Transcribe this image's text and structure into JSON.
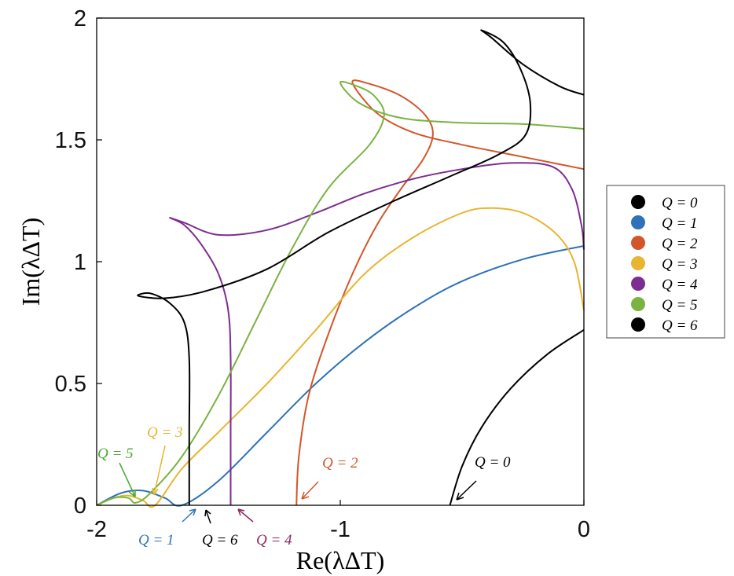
{
  "chart_data": {
    "type": "line",
    "title": "",
    "xlabel": "Re(λΔT)",
    "ylabel": "Im(λΔT)",
    "xlim": [
      -2,
      0
    ],
    "ylim": [
      0,
      2
    ],
    "x_ticks": [
      "-2",
      "-1",
      "0"
    ],
    "y_ticks": [
      "0",
      "0.5",
      "1",
      "1.5",
      "2"
    ],
    "grid": false,
    "legend_position": "right",
    "series": [
      {
        "name": "Q = 0",
        "color": "#000000",
        "points": [
          [
            -0.55,
            0
          ],
          [
            -0.5,
            0.16
          ],
          [
            -0.42,
            0.32
          ],
          [
            -0.3,
            0.48
          ],
          [
            -0.15,
            0.62
          ],
          [
            0,
            0.72
          ]
        ]
      },
      {
        "name": "Q = 1",
        "color": "#2f72b8",
        "points": [
          [
            -2.0,
            0
          ],
          [
            -1.9,
            0.05
          ],
          [
            -1.81,
            0.06
          ],
          [
            -1.72,
            0.03
          ],
          [
            -1.65,
            0
          ],
          [
            -1.5,
            0.1
          ],
          [
            -1.3,
            0.3
          ],
          [
            -1.1,
            0.5
          ],
          [
            -0.9,
            0.67
          ],
          [
            -0.7,
            0.81
          ],
          [
            -0.5,
            0.92
          ],
          [
            -0.25,
            1.01
          ],
          [
            0,
            1.065
          ]
        ]
      },
      {
        "name": "Q = 2",
        "color": "#d2562a",
        "points": [
          [
            -1.18,
            0
          ],
          [
            -1.17,
            0.2
          ],
          [
            -1.13,
            0.45
          ],
          [
            -1.05,
            0.7
          ],
          [
            -0.95,
            0.95
          ],
          [
            -0.85,
            1.15
          ],
          [
            -0.75,
            1.3
          ],
          [
            -0.66,
            1.42
          ],
          [
            -0.62,
            1.52
          ],
          [
            -0.65,
            1.6
          ],
          [
            -0.75,
            1.68
          ],
          [
            -0.88,
            1.73
          ],
          [
            -0.95,
            1.735
          ],
          [
            -0.85,
            1.61
          ],
          [
            -0.7,
            1.53
          ],
          [
            -0.5,
            1.48
          ],
          [
            -0.3,
            1.44
          ],
          [
            -0.1,
            1.4
          ],
          [
            0,
            1.38
          ]
        ]
      },
      {
        "name": "Q = 3",
        "color": "#e8b531",
        "points": [
          [
            -2.0,
            0
          ],
          [
            -1.93,
            0.03
          ],
          [
            -1.87,
            0.04
          ],
          [
            -1.81,
            0.02
          ],
          [
            -1.76,
            0
          ],
          [
            -1.65,
            0.15
          ],
          [
            -1.5,
            0.3
          ],
          [
            -1.3,
            0.5
          ],
          [
            -1.1,
            0.72
          ],
          [
            -0.9,
            0.95
          ],
          [
            -0.7,
            1.1
          ],
          [
            -0.5,
            1.2
          ],
          [
            -0.38,
            1.22
          ],
          [
            -0.25,
            1.2
          ],
          [
            -0.12,
            1.12
          ],
          [
            -0.04,
            1.0
          ],
          [
            0,
            0.8
          ]
        ]
      },
      {
        "name": "Q = 4",
        "color": "#7d2d90",
        "points": [
          [
            -1.45,
            0
          ],
          [
            -1.45,
            0.3
          ],
          [
            -1.45,
            0.6
          ],
          [
            -1.46,
            0.8
          ],
          [
            -1.5,
            0.95
          ],
          [
            -1.57,
            1.07
          ],
          [
            -1.64,
            1.15
          ],
          [
            -1.7,
            1.18
          ],
          [
            -1.64,
            1.16
          ],
          [
            -1.5,
            1.11
          ],
          [
            -1.3,
            1.13
          ],
          [
            -1.1,
            1.2
          ],
          [
            -0.9,
            1.28
          ],
          [
            -0.7,
            1.34
          ],
          [
            -0.5,
            1.38
          ],
          [
            -0.3,
            1.405
          ],
          [
            -0.13,
            1.39
          ],
          [
            -0.05,
            1.3
          ],
          [
            -0.01,
            1.15
          ],
          [
            0,
            1.05
          ]
        ]
      },
      {
        "name": "Q = 5",
        "color": "#7ab340",
        "points": [
          [
            -2.0,
            0
          ],
          [
            -1.93,
            0.03
          ],
          [
            -1.87,
            0.03
          ],
          [
            -1.84,
            0.01
          ],
          [
            -1.78,
            0.05
          ],
          [
            -1.65,
            0.2
          ],
          [
            -1.5,
            0.45
          ],
          [
            -1.35,
            0.75
          ],
          [
            -1.2,
            1.05
          ],
          [
            -1.05,
            1.3
          ],
          [
            -0.88,
            1.48
          ],
          [
            -0.82,
            1.6
          ],
          [
            -0.86,
            1.68
          ],
          [
            -0.93,
            1.72
          ],
          [
            -1.0,
            1.735
          ],
          [
            -0.92,
            1.65
          ],
          [
            -0.75,
            1.59
          ],
          [
            -0.5,
            1.57
          ],
          [
            -0.25,
            1.565
          ],
          [
            0,
            1.545
          ]
        ]
      },
      {
        "name": "Q = 6",
        "color": "#000000",
        "points": [
          [
            -1.62,
            0
          ],
          [
            -1.62,
            0.3
          ],
          [
            -1.62,
            0.6
          ],
          [
            -1.64,
            0.75
          ],
          [
            -1.7,
            0.83
          ],
          [
            -1.78,
            0.87
          ],
          [
            -1.83,
            0.86
          ],
          [
            -1.72,
            0.85
          ],
          [
            -1.55,
            0.88
          ],
          [
            -1.3,
            0.97
          ],
          [
            -1.05,
            1.12
          ],
          [
            -0.8,
            1.24
          ],
          [
            -0.55,
            1.35
          ],
          [
            -0.35,
            1.44
          ],
          [
            -0.24,
            1.52
          ],
          [
            -0.22,
            1.65
          ],
          [
            -0.26,
            1.79
          ],
          [
            -0.33,
            1.9
          ],
          [
            -0.42,
            1.95
          ],
          [
            -0.38,
            1.92
          ],
          [
            -0.25,
            1.81
          ],
          [
            -0.1,
            1.72
          ],
          [
            0,
            1.685
          ]
        ]
      }
    ],
    "annotations": [
      {
        "text": "Q = 0",
        "color": "#000000"
      },
      {
        "text": "Q = 1",
        "color": "#2f72b8"
      },
      {
        "text": "Q = 2",
        "color": "#d2562a"
      },
      {
        "text": "Q = 3",
        "color": "#e8b531"
      },
      {
        "text": "Q = 4",
        "color": "#7d2d90"
      },
      {
        "text": "Q = 5",
        "color": "#7ab340"
      },
      {
        "text": "Q = 6",
        "color": "#000000"
      }
    ]
  }
}
